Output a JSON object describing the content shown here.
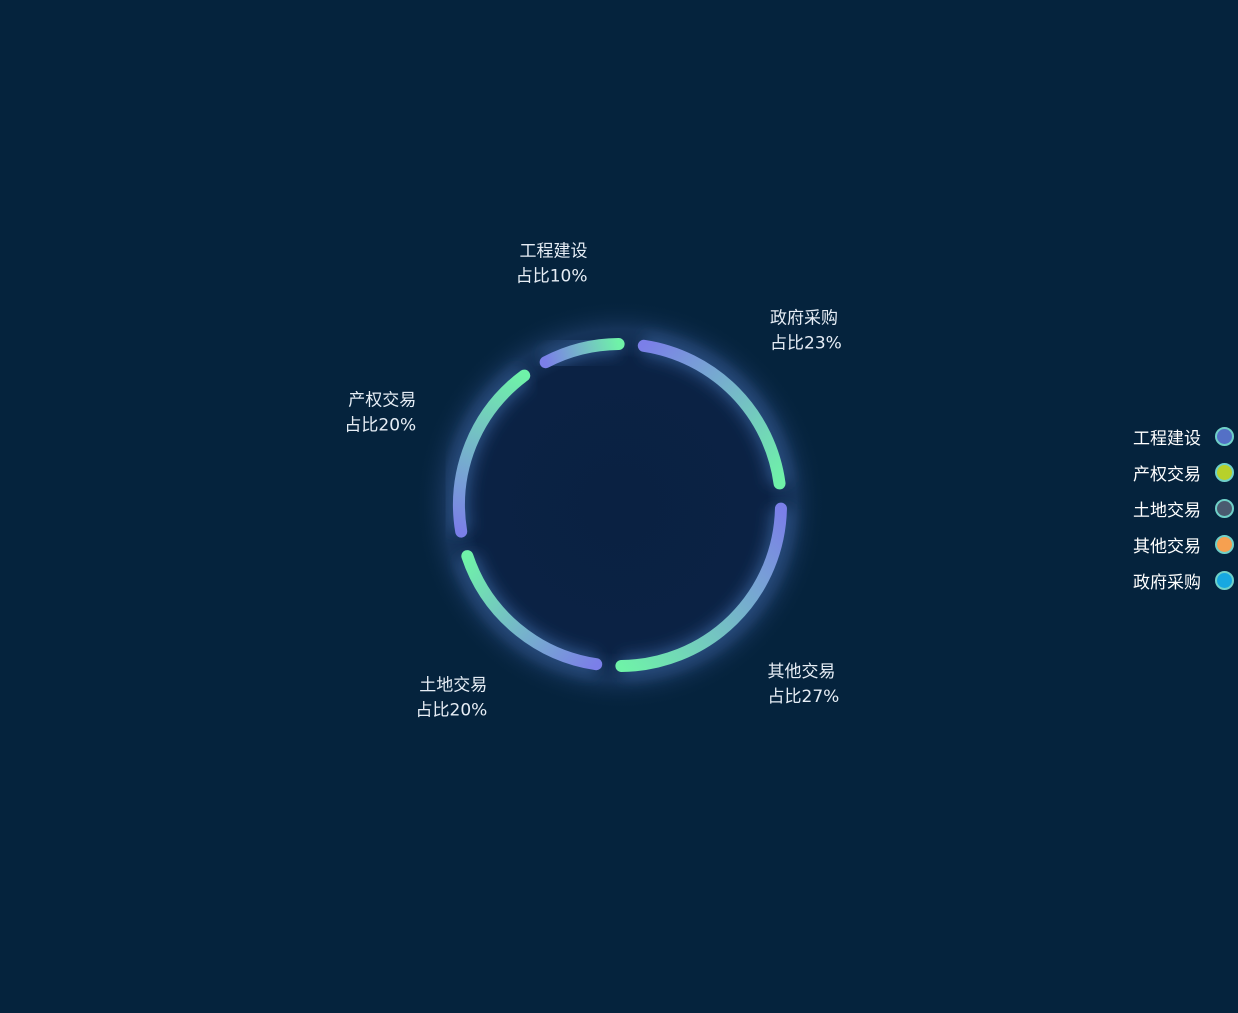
{
  "chart_data": {
    "type": "pie",
    "title": "",
    "slices": [
      {
        "name": "政府采购",
        "percent": 23,
        "label_line1": "政府采购",
        "label_line2": "占比23%"
      },
      {
        "name": "其他交易",
        "percent": 27,
        "label_line1": "其他交易",
        "label_line2": "占比27%"
      },
      {
        "name": "土地交易",
        "percent": 20,
        "label_line1": "土地交易",
        "label_line2": "占比20%"
      },
      {
        "name": "产权交易",
        "percent": 20,
        "label_line1": "产权交易",
        "label_line2": "占比20%"
      },
      {
        "name": "工程建设",
        "percent": 10,
        "label_line1": "工程建设",
        "label_line2": "占比10%"
      }
    ],
    "legend": [
      {
        "label": "工程建设",
        "color": "#5470c6"
      },
      {
        "label": "产权交易",
        "color": "#b7d12a"
      },
      {
        "label": "土地交易",
        "color": "#4a5a70"
      },
      {
        "label": "其他交易",
        "color": "#f6a050"
      },
      {
        "label": "政府采购",
        "color": "#17a8e0"
      }
    ],
    "legend_position": "right",
    "gradient_colors": [
      "#7b7fe8",
      "#6ff2a8"
    ],
    "background": "#05233d"
  }
}
